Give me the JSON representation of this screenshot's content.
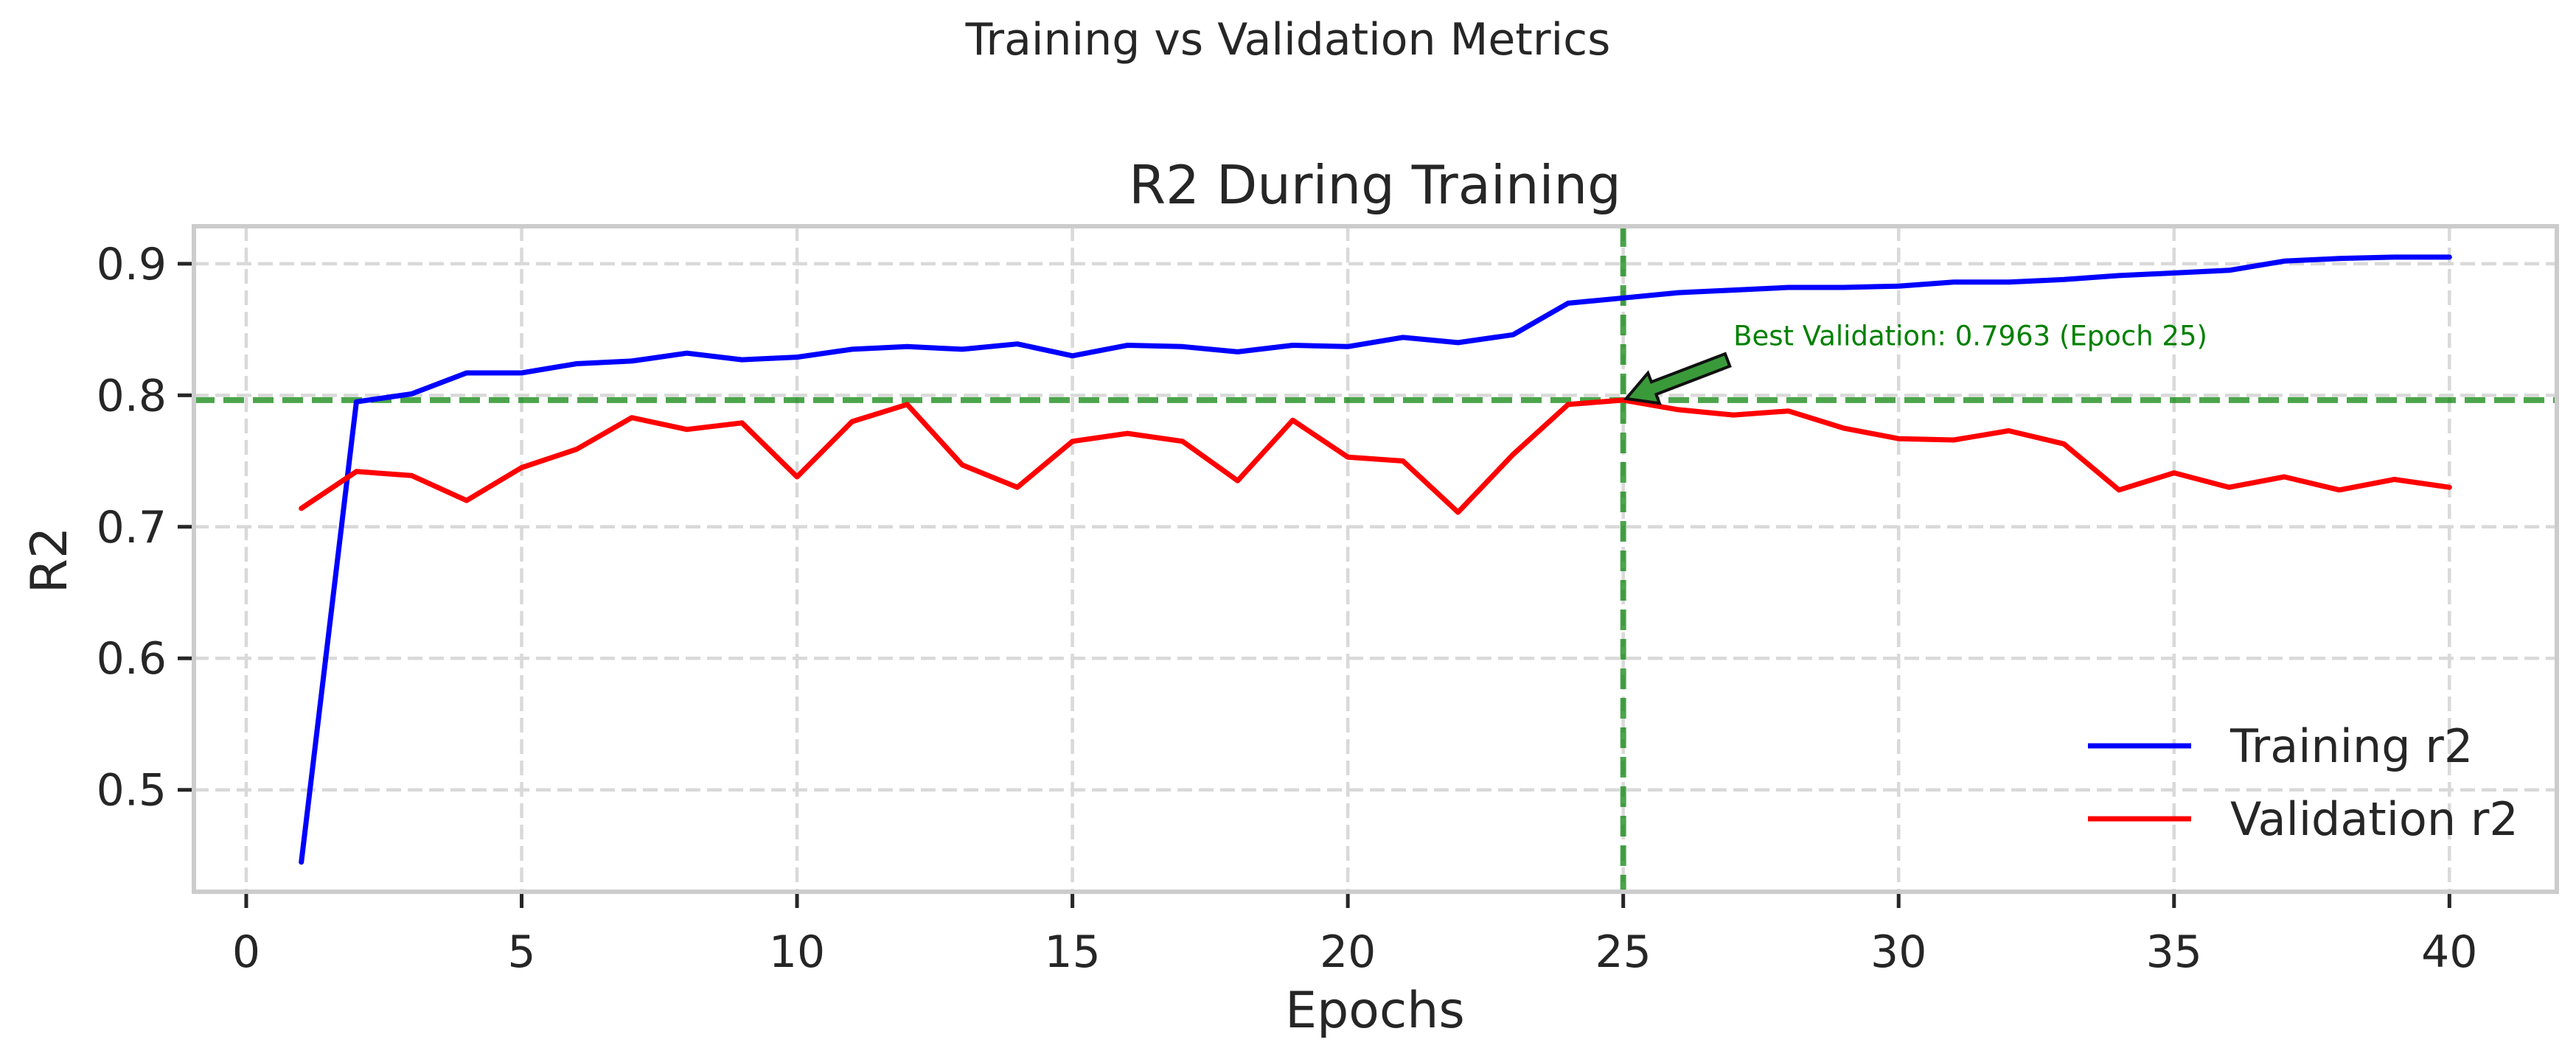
{
  "suptitle": "Training vs Validation Metrics",
  "chart_data": {
    "type": "line",
    "title": "R2 During Training",
    "xlabel": "Epochs",
    "ylabel": "R2",
    "xlim": [
      -0.95,
      41.95
    ],
    "ylim": [
      0.4225,
      0.9285
    ],
    "xticks": [
      0,
      5,
      10,
      15,
      20,
      25,
      30,
      35,
      40
    ],
    "yticks": [
      0.5,
      0.6,
      0.7,
      0.8,
      0.9
    ],
    "grid": true,
    "legend_position": "lower right",
    "x": [
      1,
      2,
      3,
      4,
      5,
      6,
      7,
      8,
      9,
      10,
      11,
      12,
      13,
      14,
      15,
      16,
      17,
      18,
      19,
      20,
      21,
      22,
      23,
      24,
      25,
      26,
      27,
      28,
      29,
      30,
      31,
      32,
      33,
      34,
      35,
      36,
      37,
      38,
      39,
      40
    ],
    "series": [
      {
        "name": "Training r2",
        "color": "#0000ff",
        "values": [
          0.445,
          0.795,
          0.801,
          0.817,
          0.817,
          0.824,
          0.826,
          0.832,
          0.827,
          0.829,
          0.835,
          0.837,
          0.835,
          0.839,
          0.83,
          0.838,
          0.837,
          0.833,
          0.838,
          0.837,
          0.844,
          0.84,
          0.846,
          0.87,
          0.874,
          0.878,
          0.88,
          0.882,
          0.882,
          0.883,
          0.886,
          0.886,
          0.888,
          0.891,
          0.893,
          0.895,
          0.902,
          0.904,
          0.905,
          0.905
        ]
      },
      {
        "name": "Validation r2",
        "color": "#ff0000",
        "values": [
          0.714,
          0.742,
          0.739,
          0.72,
          0.745,
          0.759,
          0.783,
          0.774,
          0.779,
          0.738,
          0.78,
          0.793,
          0.747,
          0.73,
          0.765,
          0.771,
          0.765,
          0.735,
          0.781,
          0.753,
          0.75,
          0.711,
          0.755,
          0.793,
          0.7963,
          0.789,
          0.785,
          0.788,
          0.775,
          0.767,
          0.766,
          0.773,
          0.763,
          0.728,
          0.741,
          0.73,
          0.738,
          0.728,
          0.736,
          0.73
        ]
      }
    ],
    "best_lines": {
      "color": "#008000",
      "x": 25,
      "y": 0.7963
    },
    "annotation": {
      "text": "Best Validation: 0.7963 (Epoch 25)",
      "point": [
        25,
        0.7963
      ],
      "text_at": [
        27,
        0.838
      ]
    }
  }
}
